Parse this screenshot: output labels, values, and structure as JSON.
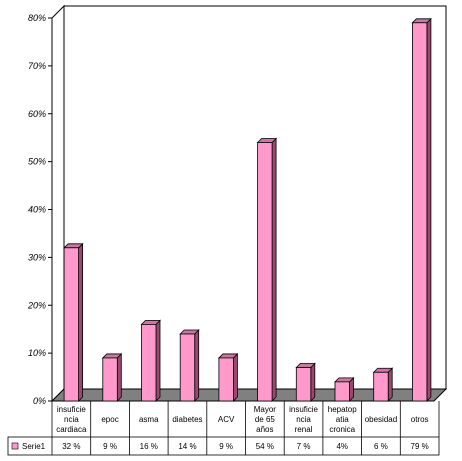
{
  "chart_data": {
    "type": "bar",
    "title": "",
    "xlabel": "",
    "ylabel": "",
    "ylim": [
      0,
      80
    ],
    "yticks": [
      "0%",
      "10%",
      "20%",
      "30%",
      "40%",
      "50%",
      "60%",
      "70%",
      "80%"
    ],
    "categories": [
      [
        "insuficie",
        "ncia",
        "cardiaca"
      ],
      [
        "epoc"
      ],
      [
        "asma"
      ],
      [
        "diabetes"
      ],
      [
        "ACV"
      ],
      [
        "Mayor",
        "de 65",
        "años"
      ],
      [
        "insuficie",
        "ncia",
        "renal"
      ],
      [
        "hepatop",
        "atia",
        "cronica"
      ],
      [
        "obesidad"
      ],
      [
        "otros"
      ]
    ],
    "series": [
      {
        "name": "Serie1",
        "values": [
          32,
          9,
          16,
          14,
          9,
          54,
          7,
          4,
          6,
          79
        ],
        "value_labels": [
          "32 %",
          "9 %",
          "16 %",
          "14 %",
          "9 %",
          "54 %",
          "7 %",
          "4%",
          "6 %",
          "79 %"
        ],
        "color": "#ff99cc"
      }
    ],
    "grid": false,
    "legend": "table-bottom-left",
    "colors": {
      "bar_front": "#ff99cc",
      "bar_side": "#99496e",
      "bar_top": "#cc77a0",
      "floor": "#808080",
      "wall": "#ffffff"
    }
  }
}
